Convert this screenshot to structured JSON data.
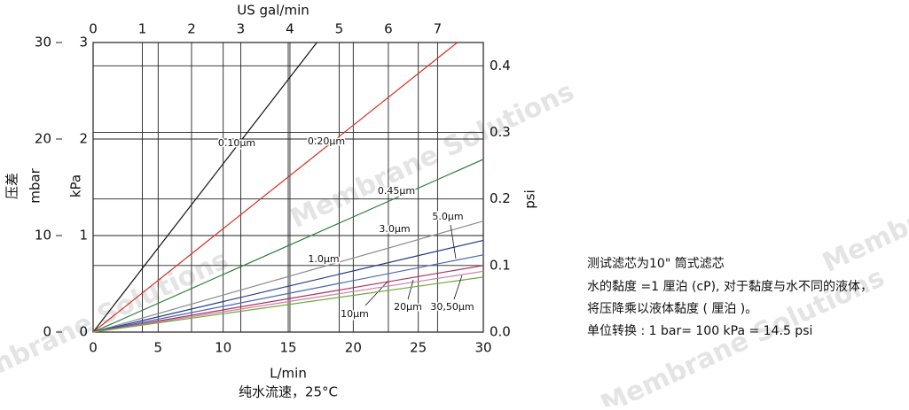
{
  "chart_data": {
    "type": "line",
    "watermark": "Membrane Solutions",
    "xlabel": "L/min",
    "xlabel2": "纯水流速，25°C",
    "x2label": "US gal/min",
    "ylabel": "压差",
    "ylabel_unit": "mbar",
    "y3label": "kPa",
    "y2label": "psi",
    "xlim": [
      0,
      30
    ],
    "xticks": [
      0,
      5,
      10,
      15,
      20,
      25,
      30
    ],
    "x2lim": [
      0,
      7.93
    ],
    "x2ticks": [
      0,
      1,
      2,
      3,
      4,
      5,
      6,
      7
    ],
    "ylim": [
      0,
      30
    ],
    "yticks": [
      0,
      10,
      20,
      30
    ],
    "y3lim": [
      0,
      3
    ],
    "y3ticks": [
      0,
      1,
      2,
      3
    ],
    "y2lim": [
      0,
      0.435
    ],
    "y2ticks": [
      {
        "value": 0,
        "label": "0.0"
      },
      0.1,
      0.2,
      0.3,
      0.4
    ],
    "grid": true,
    "series": [
      {
        "name": "0.10µm",
        "color": "#111111",
        "x": [
          0,
          17.2
        ],
        "values": [
          0,
          30
        ]
      },
      {
        "name": "0.20µm",
        "color": "#d8322a",
        "x": [
          0,
          28
        ],
        "values": [
          0,
          30
        ]
      },
      {
        "name": "0.45µm",
        "color": "#2f7d3c",
        "x": [
          0,
          30
        ],
        "values": [
          0,
          17.9
        ]
      },
      {
        "name": "3.0µm",
        "color": "#8c8c8c",
        "x": [
          0,
          30
        ],
        "values": [
          0,
          11.5
        ]
      },
      {
        "name": "5.0µm",
        "color": "#1f3a86",
        "x": [
          0,
          30
        ],
        "values": [
          0,
          9.5
        ]
      },
      {
        "name": "1.0µm",
        "color": "#4466b8",
        "x": [
          0,
          30
        ],
        "values": [
          0,
          8.0
        ]
      },
      {
        "name": "10µm",
        "color": "#a8305a",
        "x": [
          0,
          30
        ],
        "values": [
          0,
          6.9
        ]
      },
      {
        "name": "20µm",
        "color": "#d47aa8",
        "x": [
          0,
          30
        ],
        "values": [
          0,
          6.3
        ]
      },
      {
        "name": "30,50µm",
        "color": "#6aab3a",
        "x": [
          0,
          30
        ],
        "values": [
          0,
          5.7
        ]
      }
    ]
  },
  "notes": [
    "测试滤芯为10\" 筒式滤芯",
    "水的黏度 =1 厘泊 (cP), 对于黏度与水不同的液体，",
    "将压降乘以液体黏度 ( 厘泊 )。",
    "单位转换 : 1 bar= 100 kPa = 14.5 psi"
  ]
}
